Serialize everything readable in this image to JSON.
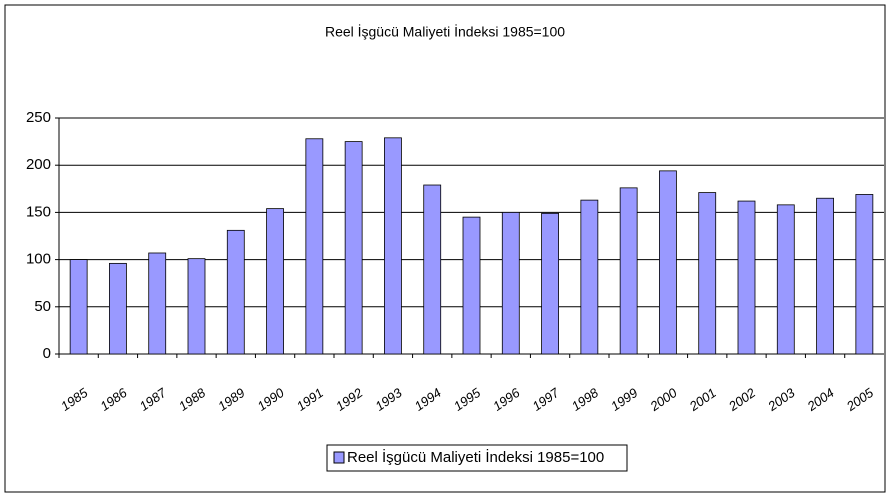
{
  "chart_data": {
    "type": "bar",
    "title": "Reel İşgücü Maliyeti İndeksi 1985=100",
    "categories": [
      "1985",
      "1986",
      "1987",
      "1988",
      "1989",
      "1990",
      "1991",
      "1992",
      "1993",
      "1994",
      "1995",
      "1996",
      "1997",
      "1998",
      "1999",
      "2000",
      "2001",
      "2002",
      "2003",
      "2004",
      "2005"
    ],
    "series": [
      {
        "name": "Reel İşgücü Maliyeti İndeksi 1985=100",
        "color": "#9999ff",
        "values": [
          100,
          96,
          107,
          101,
          131,
          154,
          228,
          225,
          229,
          179,
          145,
          150,
          149,
          163,
          176,
          194,
          171,
          162,
          158,
          165,
          169
        ]
      }
    ],
    "ylim": [
      0,
      250
    ],
    "yticks": [
      0,
      50,
      100,
      150,
      200,
      250
    ],
    "grid": true,
    "legend": "bottom"
  }
}
